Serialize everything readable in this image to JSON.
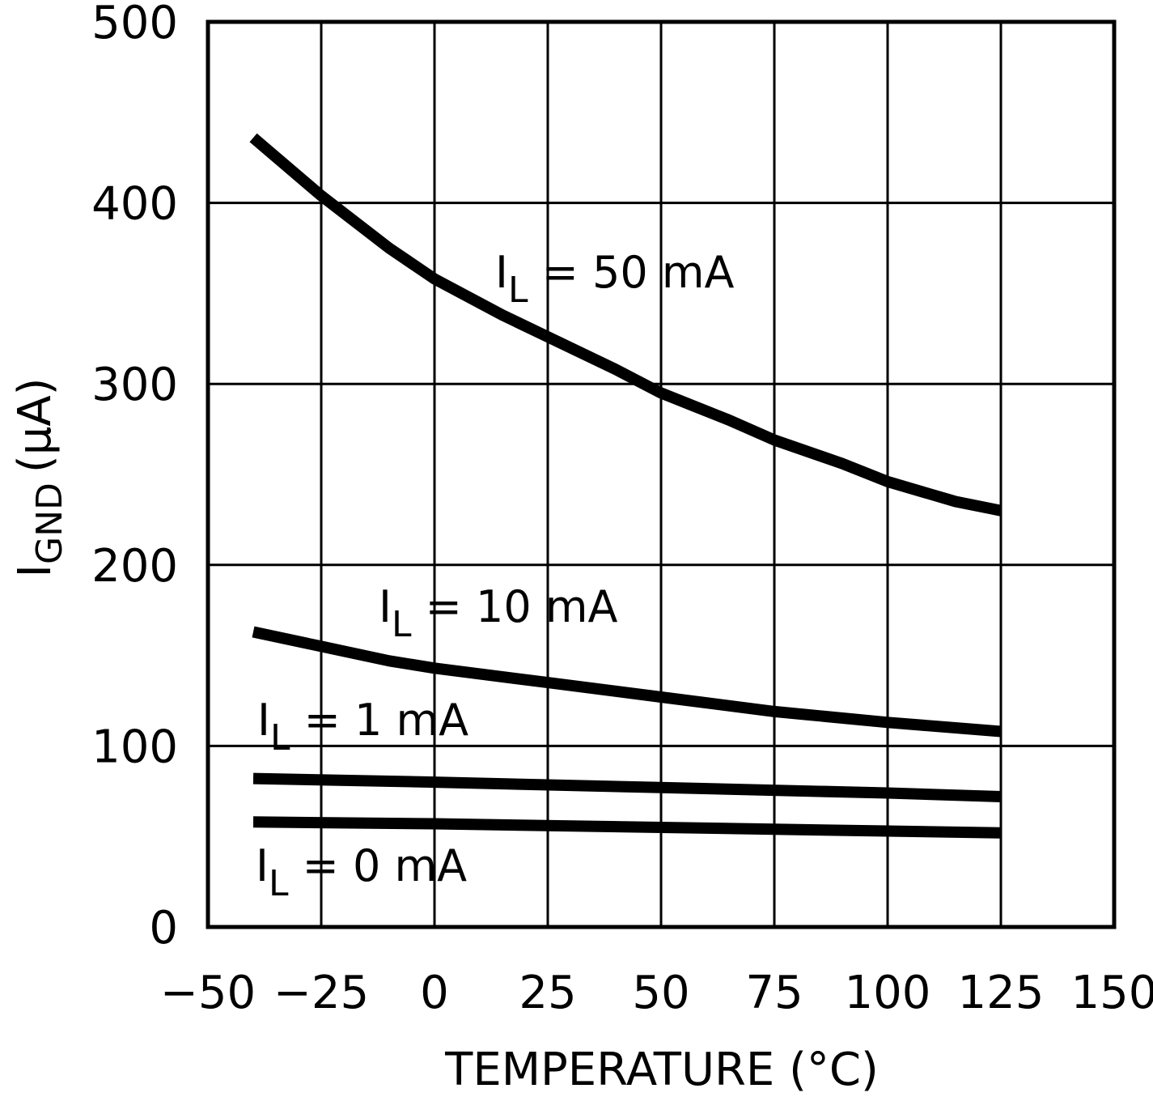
{
  "chart_data": {
    "type": "line",
    "title": "",
    "xlabel": "TEMPERATURE (°C)",
    "ylabel_main": "I",
    "ylabel_sub": "GND",
    "ylabel_unit": "(μA)",
    "xlim": [
      -50,
      150
    ],
    "ylim": [
      0,
      500
    ],
    "xticks": [
      -50,
      -25,
      0,
      25,
      50,
      75,
      100,
      125,
      150
    ],
    "xtick_labels": [
      "−50",
      "−25",
      "0",
      "25",
      "50",
      "75",
      "100",
      "125",
      "150"
    ],
    "yticks": [
      0,
      100,
      200,
      300,
      400,
      500
    ],
    "ytick_labels": [
      "0",
      "100",
      "200",
      "300",
      "400",
      "500"
    ],
    "grid": true,
    "colors": {
      "line": "#000000",
      "grid": "#000000",
      "background": "#ffffff"
    },
    "series": [
      {
        "name": "IL = 50 mA",
        "label_main": "I",
        "label_sub": "L",
        "label_rest": " = 50 mA",
        "x": [
          -40,
          -25,
          -10,
          0,
          15,
          25,
          40,
          50,
          65,
          75,
          90,
          100,
          115,
          125
        ],
        "y": [
          436,
          404,
          375,
          358,
          338,
          326,
          308,
          295,
          280,
          269,
          256,
          246,
          235,
          230
        ]
      },
      {
        "name": "IL = 10 mA",
        "label_main": "I",
        "label_sub": "L",
        "label_rest": " = 10 mA",
        "x": [
          -40,
          -25,
          -10,
          0,
          25,
          50,
          75,
          100,
          125
        ],
        "y": [
          163,
          155,
          147,
          143,
          135,
          127,
          119,
          113,
          108
        ]
      },
      {
        "name": "IL = 1 mA",
        "label_main": "I",
        "label_sub": "L",
        "label_rest": " = 1 mA",
        "x": [
          -40,
          0,
          50,
          100,
          125
        ],
        "y": [
          82,
          80,
          77,
          74,
          72
        ]
      },
      {
        "name": "IL = 0 mA",
        "label_main": "I",
        "label_sub": "L",
        "label_rest": " = 0 mA",
        "x": [
          -40,
          0,
          50,
          100,
          125
        ],
        "y": [
          58,
          57,
          55,
          53,
          52
        ]
      }
    ]
  }
}
